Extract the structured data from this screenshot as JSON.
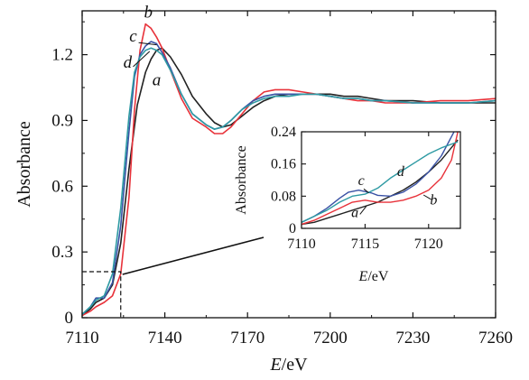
{
  "chart_data": [
    {
      "type": "line",
      "xlabel": "E/eV",
      "ylabel": "Absorbance",
      "xlim": [
        7110,
        7260
      ],
      "ylim": [
        0,
        1.4
      ],
      "xticks": [
        "7110",
        "7140",
        "7170",
        "7200",
        "7230",
        "7260"
      ],
      "yticks": [
        "0",
        "0.3",
        "0.6",
        "0.9",
        "1.2"
      ],
      "grid": false,
      "series": [
        {
          "name": "a",
          "color": "#222222",
          "x": [
            7110,
            7113,
            7115,
            7118,
            7121,
            7124,
            7127,
            7130,
            7133,
            7135,
            7137,
            7139,
            7142,
            7146,
            7150,
            7155,
            7158,
            7161,
            7164,
            7168,
            7172,
            7176,
            7180,
            7185,
            7190,
            7195,
            7200,
            7205,
            7210,
            7215,
            7220,
            7230,
            7240,
            7250,
            7260
          ],
          "y": [
            0.01,
            0.04,
            0.07,
            0.09,
            0.15,
            0.34,
            0.68,
            0.97,
            1.12,
            1.18,
            1.22,
            1.23,
            1.19,
            1.11,
            1.01,
            0.93,
            0.89,
            0.87,
            0.88,
            0.92,
            0.96,
            0.99,
            1.01,
            1.02,
            1.02,
            1.02,
            1.02,
            1.01,
            1.01,
            1.0,
            0.99,
            0.99,
            0.98,
            0.98,
            0.98
          ]
        },
        {
          "name": "b",
          "color": "#e8323a",
          "x": [
            7110,
            7113,
            7115,
            7118,
            7121,
            7124,
            7127,
            7129,
            7131,
            7133,
            7135,
            7137,
            7139,
            7142,
            7146,
            7150,
            7155,
            7158,
            7161,
            7164,
            7168,
            7172,
            7176,
            7180,
            7185,
            7190,
            7195,
            7200,
            7205,
            7210,
            7215,
            7220,
            7230,
            7240,
            7250,
            7260
          ],
          "y": [
            0.01,
            0.03,
            0.05,
            0.07,
            0.1,
            0.2,
            0.55,
            0.95,
            1.22,
            1.34,
            1.32,
            1.28,
            1.23,
            1.13,
            1.0,
            0.91,
            0.87,
            0.84,
            0.84,
            0.87,
            0.93,
            0.99,
            1.03,
            1.04,
            1.04,
            1.03,
            1.02,
            1.01,
            1.0,
            0.99,
            0.99,
            0.98,
            0.98,
            0.99,
            0.99,
            1.0
          ]
        },
        {
          "name": "c",
          "color": "#3a52a5",
          "x": [
            7110,
            7113,
            7115,
            7118,
            7121,
            7124,
            7127,
            7129,
            7131,
            7133,
            7135,
            7137,
            7139,
            7142,
            7146,
            7150,
            7155,
            7158,
            7161,
            7164,
            7168,
            7172,
            7176,
            7180,
            7185,
            7190,
            7195,
            7200,
            7205,
            7210,
            7215,
            7220,
            7230,
            7240,
            7250,
            7260
          ],
          "y": [
            0.015,
            0.05,
            0.09,
            0.09,
            0.16,
            0.42,
            0.85,
            1.1,
            1.2,
            1.24,
            1.26,
            1.25,
            1.21,
            1.14,
            1.02,
            0.93,
            0.88,
            0.86,
            0.87,
            0.9,
            0.95,
            0.99,
            1.01,
            1.02,
            1.02,
            1.02,
            1.02,
            1.01,
            1.0,
            1.0,
            0.99,
            0.99,
            0.98,
            0.98,
            0.98,
            0.99
          ]
        },
        {
          "name": "d",
          "color": "#2e9aa3",
          "x": [
            7110,
            7113,
            7115,
            7118,
            7121,
            7124,
            7127,
            7129,
            7131,
            7133,
            7135,
            7137,
            7139,
            7142,
            7146,
            7150,
            7155,
            7158,
            7161,
            7164,
            7168,
            7172,
            7176,
            7180,
            7185,
            7190,
            7195,
            7200,
            7205,
            7210,
            7215,
            7220,
            7230,
            7240,
            7250,
            7260
          ],
          "y": [
            0.015,
            0.05,
            0.08,
            0.1,
            0.2,
            0.5,
            0.92,
            1.12,
            1.19,
            1.22,
            1.23,
            1.22,
            1.2,
            1.13,
            1.02,
            0.93,
            0.88,
            0.86,
            0.87,
            0.9,
            0.95,
            0.98,
            1.0,
            1.01,
            1.01,
            1.02,
            1.02,
            1.01,
            1.0,
            1.0,
            0.99,
            0.99,
            0.98,
            0.98,
            0.98,
            0.99
          ]
        }
      ],
      "annotations": [
        {
          "text": "b",
          "x": 7134,
          "y": 1.37
        },
        {
          "text": "c",
          "x": 7128.5,
          "y": 1.26
        },
        {
          "text": "d",
          "x": 7126.5,
          "y": 1.14
        },
        {
          "text": "a",
          "x": 7137,
          "y": 1.06
        }
      ],
      "zoom_box": {
        "x": [
          7110,
          7124
        ],
        "y": [
          0,
          0.21
        ]
      }
    },
    {
      "type": "line",
      "xlabel": "E/eV",
      "ylabel": "Absorbance",
      "xlim": [
        7110,
        7122.5
      ],
      "ylim": [
        0,
        0.24
      ],
      "xticks": [
        "7110",
        "7115",
        "7120"
      ],
      "yticks": [
        "0",
        "0.08",
        "0.16",
        "0.24"
      ],
      "grid": false,
      "series": [
        {
          "name": "a",
          "color": "#222222",
          "x": [
            7110,
            7111,
            7112,
            7113,
            7114,
            7115,
            7116,
            7117,
            7118,
            7119,
            7120,
            7121,
            7122.3
          ],
          "y": [
            0.01,
            0.015,
            0.025,
            0.035,
            0.045,
            0.055,
            0.065,
            0.08,
            0.095,
            0.115,
            0.14,
            0.17,
            0.22
          ]
        },
        {
          "name": "b",
          "color": "#e8323a",
          "x": [
            7110,
            7111,
            7112,
            7113,
            7114,
            7115,
            7116,
            7117,
            7118,
            7119,
            7120,
            7121,
            7121.8,
            7122.3
          ],
          "y": [
            0.01,
            0.02,
            0.035,
            0.05,
            0.065,
            0.07,
            0.065,
            0.065,
            0.07,
            0.08,
            0.095,
            0.125,
            0.17,
            0.24
          ]
        },
        {
          "name": "c",
          "color": "#3a52a5",
          "x": [
            7110,
            7111,
            7112,
            7113,
            7113.7,
            7114.5,
            7115.5,
            7116,
            7117,
            7118,
            7119,
            7120,
            7121,
            7122
          ],
          "y": [
            0.015,
            0.03,
            0.05,
            0.075,
            0.09,
            0.095,
            0.088,
            0.082,
            0.08,
            0.09,
            0.11,
            0.14,
            0.18,
            0.24
          ]
        },
        {
          "name": "d",
          "color": "#2e9aa3",
          "x": [
            7110,
            7111,
            7112,
            7113,
            7114,
            7115,
            7116,
            7117,
            7118,
            7119,
            7120,
            7121,
            7122.3
          ],
          "y": [
            0.015,
            0.03,
            0.045,
            0.065,
            0.08,
            0.085,
            0.1,
            0.125,
            0.145,
            0.165,
            0.185,
            0.2,
            0.215
          ]
        }
      ],
      "annotations": [
        {
          "text": "c",
          "x": 7114.7,
          "y": 0.108
        },
        {
          "text": "d",
          "x": 7117.8,
          "y": 0.13
        },
        {
          "text": "a",
          "x": 7114.2,
          "y": 0.028
        },
        {
          "text": "b",
          "x": 7120.4,
          "y": 0.06
        }
      ]
    }
  ]
}
